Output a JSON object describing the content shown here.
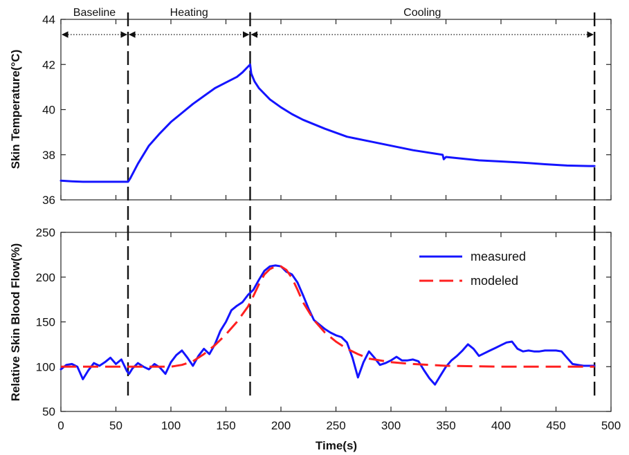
{
  "chart_data": [
    {
      "type": "line",
      "ylabel": "Skin Temperature(°C)",
      "xlim": [
        0,
        500
      ],
      "ylim": [
        36,
        44
      ],
      "yticks": [
        "36",
        "38",
        "40",
        "42",
        "44"
      ],
      "phases": [
        {
          "label": "Baseline",
          "start": 0,
          "end": 61
        },
        {
          "label": "Heating",
          "start": 61,
          "end": 172
        },
        {
          "label": "Cooling",
          "start": 172,
          "end": 485
        }
      ],
      "vlines": [
        61,
        172,
        485
      ],
      "series": [
        {
          "color": "#1414ff",
          "x": [
            0,
            10,
            20,
            30,
            40,
            50,
            58,
            61,
            63,
            70,
            80,
            90,
            100,
            110,
            120,
            130,
            140,
            150,
            160,
            165,
            170,
            172,
            173,
            176,
            180,
            190,
            200,
            210,
            220,
            240,
            260,
            280,
            300,
            320,
            340,
            347,
            348,
            350,
            360,
            380,
            400,
            420,
            440,
            460,
            480,
            485
          ],
          "y": [
            36.85,
            36.82,
            36.8,
            36.8,
            36.8,
            36.8,
            36.8,
            36.8,
            36.95,
            37.6,
            38.4,
            38.95,
            39.45,
            39.85,
            40.25,
            40.6,
            40.95,
            41.2,
            41.45,
            41.65,
            41.9,
            42.0,
            41.6,
            41.25,
            40.95,
            40.45,
            40.1,
            39.8,
            39.55,
            39.15,
            38.8,
            38.6,
            38.4,
            38.2,
            38.05,
            38.0,
            37.8,
            37.9,
            37.85,
            37.75,
            37.7,
            37.65,
            37.58,
            37.52,
            37.5,
            37.5
          ]
        }
      ]
    },
    {
      "type": "line",
      "xlabel": "Time(s)",
      "ylabel": "Relative Skin Blood Flow(%)",
      "xlim": [
        0,
        500
      ],
      "ylim": [
        50,
        250
      ],
      "xticks": [
        "0",
        "50",
        "100",
        "150",
        "200",
        "250",
        "300",
        "350",
        "400",
        "450",
        "500"
      ],
      "yticks": [
        "50",
        "100",
        "150",
        "200",
        "250"
      ],
      "vlines": [
        61,
        172,
        485
      ],
      "legend": {
        "position": "top-right",
        "entries": [
          "measured",
          "modeled"
        ]
      },
      "series": [
        {
          "name": "measured",
          "color": "#1414ff",
          "dash": "solid",
          "x": [
            0,
            5,
            10,
            15,
            20,
            25,
            30,
            35,
            40,
            45,
            50,
            55,
            60,
            62,
            65,
            70,
            75,
            80,
            85,
            90,
            95,
            100,
            105,
            110,
            115,
            120,
            125,
            130,
            135,
            140,
            145,
            150,
            155,
            160,
            165,
            170,
            175,
            180,
            185,
            190,
            195,
            200,
            205,
            210,
            215,
            220,
            225,
            230,
            235,
            240,
            245,
            250,
            255,
            260,
            265,
            270,
            275,
            280,
            285,
            290,
            295,
            300,
            305,
            310,
            315,
            320,
            325,
            330,
            335,
            340,
            345,
            350,
            355,
            360,
            365,
            370,
            375,
            380,
            385,
            390,
            395,
            400,
            405,
            410,
            415,
            420,
            425,
            430,
            435,
            440,
            445,
            450,
            455,
            460,
            465,
            470,
            475,
            480,
            485
          ],
          "y": [
            97,
            102,
            103,
            100,
            86,
            96,
            104,
            101,
            105,
            110,
            103,
            108,
            95,
            92,
            98,
            104,
            100,
            97,
            103,
            99,
            92,
            105,
            113,
            118,
            110,
            101,
            112,
            120,
            114,
            125,
            140,
            150,
            163,
            168,
            172,
            180,
            186,
            197,
            207,
            212,
            213,
            212,
            206,
            203,
            194,
            180,
            165,
            152,
            147,
            142,
            138,
            135,
            133,
            127,
            110,
            88,
            105,
            117,
            110,
            102,
            104,
            107,
            111,
            107,
            107,
            108,
            106,
            96,
            87,
            80,
            90,
            100,
            107,
            112,
            118,
            125,
            120,
            112,
            115,
            118,
            121,
            124,
            127,
            128,
            120,
            117,
            118,
            117,
            117,
            118,
            118,
            118,
            117,
            110,
            103,
            102,
            101,
            101,
            101
          ]
        },
        {
          "name": "modeled",
          "color": "#ff2020",
          "dash": "dashed",
          "x": [
            0,
            61,
            100,
            110,
            120,
            130,
            140,
            150,
            160,
            170,
            175,
            180,
            185,
            190,
            195,
            200,
            205,
            210,
            215,
            220,
            230,
            240,
            250,
            260,
            270,
            280,
            300,
            320,
            350,
            400,
            450,
            485
          ],
          "y": [
            100,
            100,
            100,
            102,
            106,
            114,
            124,
            136,
            150,
            167,
            179,
            192,
            203,
            209,
            212,
            212,
            208,
            199,
            186,
            172,
            152,
            138,
            128,
            120,
            114,
            109,
            105,
            103,
            101,
            100,
            100,
            100
          ]
        }
      ]
    }
  ]
}
